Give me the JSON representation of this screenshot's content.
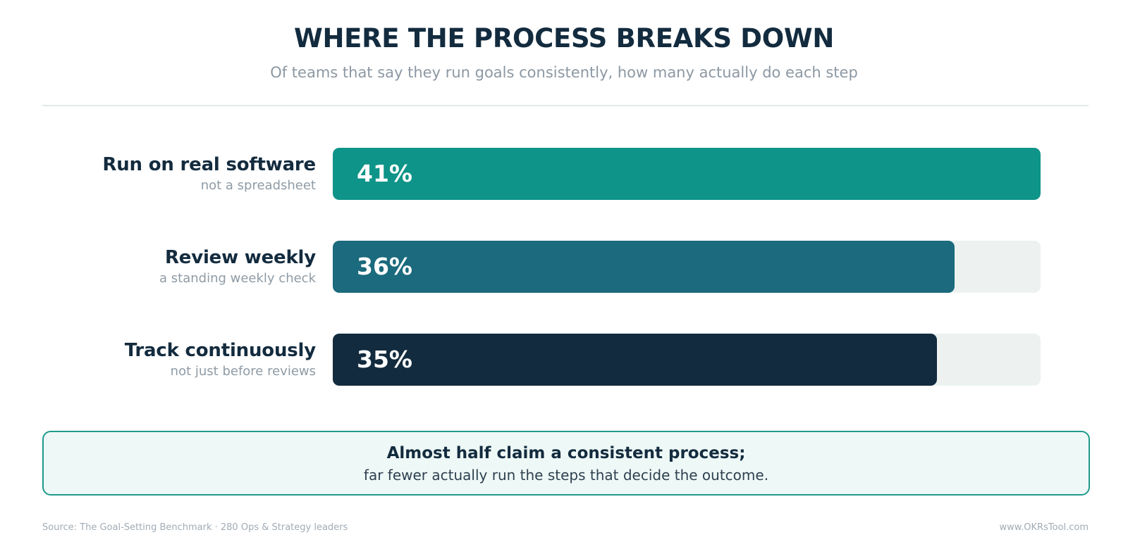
{
  "header": {
    "title": "WHERE THE PROCESS BREAKS DOWN",
    "subtitle": "Of teams that say they run goals consistently, how many actually do each step"
  },
  "chart_data": {
    "type": "bar",
    "orientation": "horizontal",
    "categories": [
      "Run on real software",
      "Review weekly",
      "Track continuously"
    ],
    "category_subtitles": [
      "not a spreadsheet",
      "a standing weekly check",
      "not just before reviews"
    ],
    "values": [
      41,
      36,
      35
    ],
    "value_labels": [
      "41%",
      "36%",
      "35%"
    ],
    "unit": "%",
    "xlim": [
      0,
      41
    ],
    "colors": [
      "#0e9488",
      "#1b6a7d",
      "#132b3e"
    ],
    "track_color": "#edf2f1",
    "grid": false
  },
  "callout": {
    "headline": "Almost half claim a consistent process;",
    "body": "far fewer actually run the steps that decide the outcome."
  },
  "footer": {
    "source": "Source: The Goal-Setting Benchmark · 280 Ops & Strategy leaders",
    "site": "www.OKRsTool.com"
  }
}
